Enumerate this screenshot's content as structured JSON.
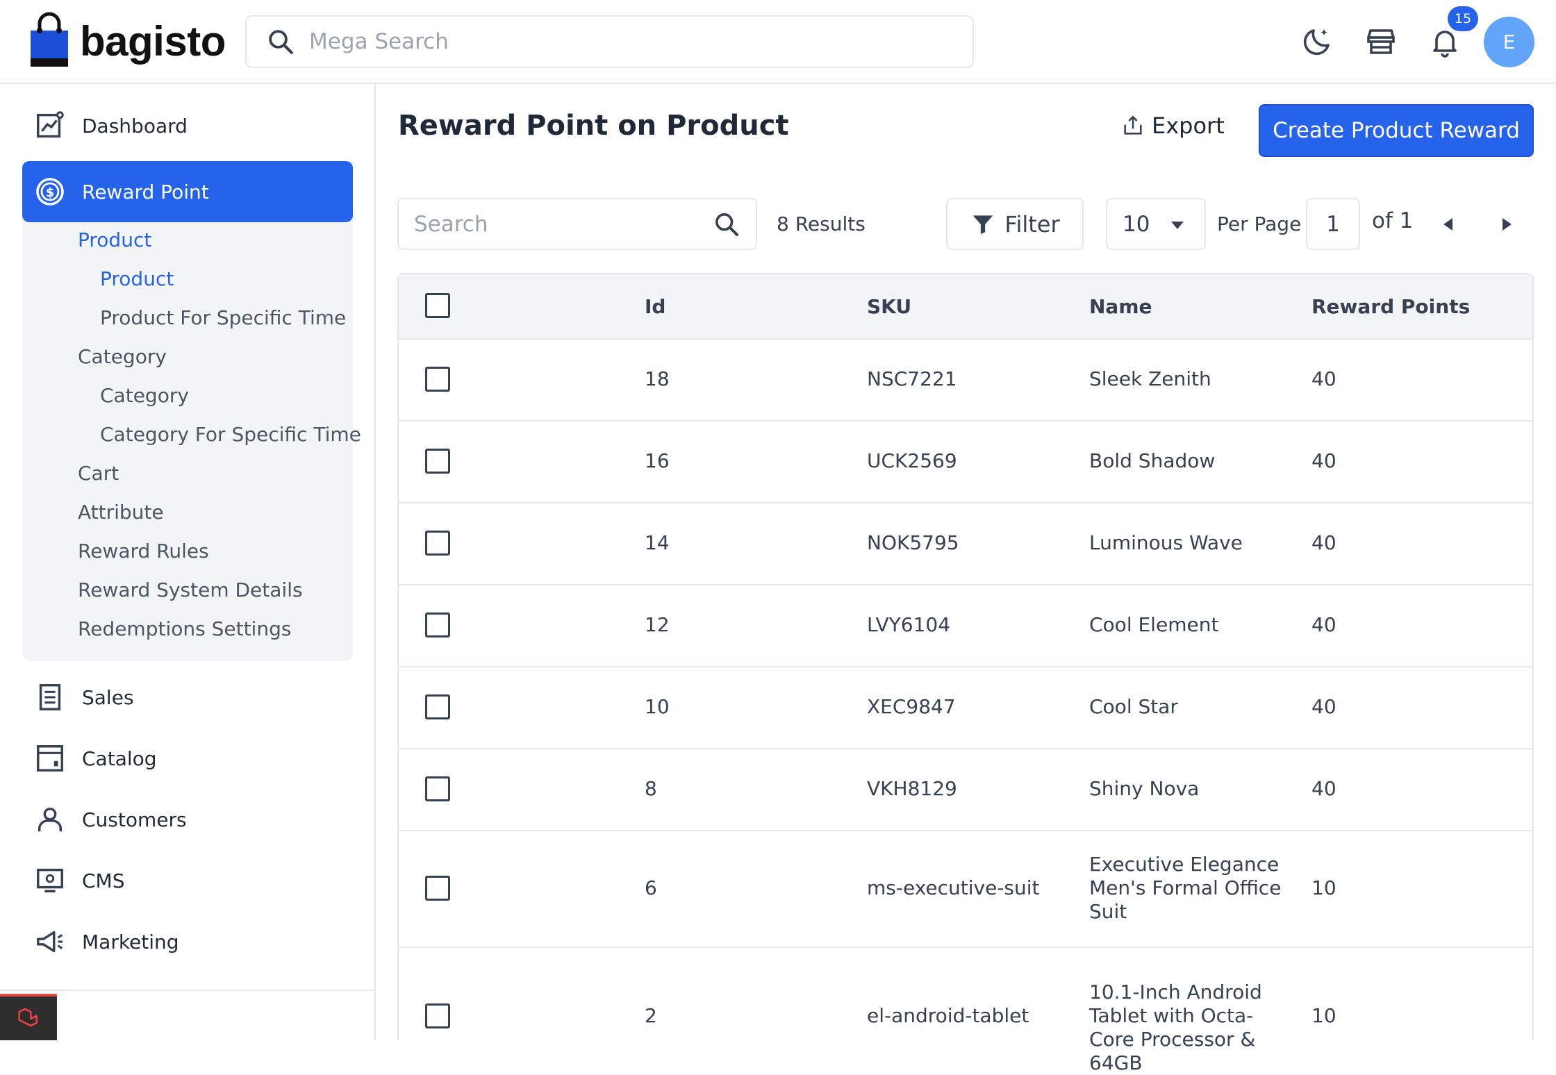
{
  "header": {
    "logo_text": "bagisto",
    "search_placeholder": "Mega Search",
    "notification_count": "15",
    "avatar_initial": "E"
  },
  "sidebar": {
    "dashboard": "Dashboard",
    "reward_point": "Reward Point",
    "sub_items": [
      {
        "label": "Product",
        "level": 1,
        "active": true
      },
      {
        "label": "Product",
        "level": 2,
        "active": true
      },
      {
        "label": "Product For Specific Time",
        "level": 2,
        "active": false
      },
      {
        "label": "Category",
        "level": 1,
        "active": false
      },
      {
        "label": "Category",
        "level": 2,
        "active": false
      },
      {
        "label": "Category For Specific Time",
        "level": 2,
        "active": false
      },
      {
        "label": "Cart",
        "level": 1,
        "active": false
      },
      {
        "label": "Attribute",
        "level": 1,
        "active": false
      },
      {
        "label": "Reward Rules",
        "level": 1,
        "active": false
      },
      {
        "label": "Reward System Details",
        "level": 1,
        "active": false
      },
      {
        "label": "Redemptions Settings",
        "level": 1,
        "active": false
      }
    ],
    "sales": "Sales",
    "catalog": "Catalog",
    "customers": "Customers",
    "cms": "CMS",
    "marketing": "Marketing"
  },
  "main": {
    "title": "Reward Point on Product",
    "export_label": "Export",
    "create_label": "Create Product Reward",
    "search_placeholder": "Search",
    "results": "8 Results",
    "filter_label": "Filter",
    "per_page_value": "10",
    "per_page_label": "Per Page",
    "page_value": "1",
    "page_of": "of 1"
  },
  "table": {
    "columns": [
      "Id",
      "SKU",
      "Name",
      "Reward Points"
    ],
    "rows": [
      {
        "id": "18",
        "sku": "NSC7221",
        "name": "Sleek Zenith",
        "points": "40"
      },
      {
        "id": "16",
        "sku": "UCK2569",
        "name": "Bold Shadow",
        "points": "40"
      },
      {
        "id": "14",
        "sku": "NOK5795",
        "name": "Luminous Wave",
        "points": "40"
      },
      {
        "id": "12",
        "sku": "LVY6104",
        "name": "Cool Element",
        "points": "40"
      },
      {
        "id": "10",
        "sku": "XEC9847",
        "name": "Cool Star",
        "points": "40"
      },
      {
        "id": "8",
        "sku": "VKH8129",
        "name": "Shiny Nova",
        "points": "40"
      },
      {
        "id": "6",
        "sku": "ms-executive-suit",
        "name": "Executive Elegance Men's Formal Office Suit",
        "points": "10"
      },
      {
        "id": "2",
        "sku": "el-android-tablet",
        "name": "10.1-Inch Android Tablet with Octa-Core Processor & 64GB",
        "points": "10"
      }
    ]
  },
  "colors": {
    "accent": "#2563eb",
    "border": "#e5e7eb",
    "muted_bg": "#f3f4f6"
  },
  "icons": [
    "bag-logo-icon",
    "search-icon",
    "moon-icon",
    "store-icon",
    "bell-icon",
    "dashboard-icon",
    "dollar-circle-icon",
    "sales-icon",
    "catalog-icon",
    "customers-icon",
    "cms-icon",
    "marketing-icon",
    "export-icon",
    "filter-icon",
    "laravel-icon"
  ]
}
